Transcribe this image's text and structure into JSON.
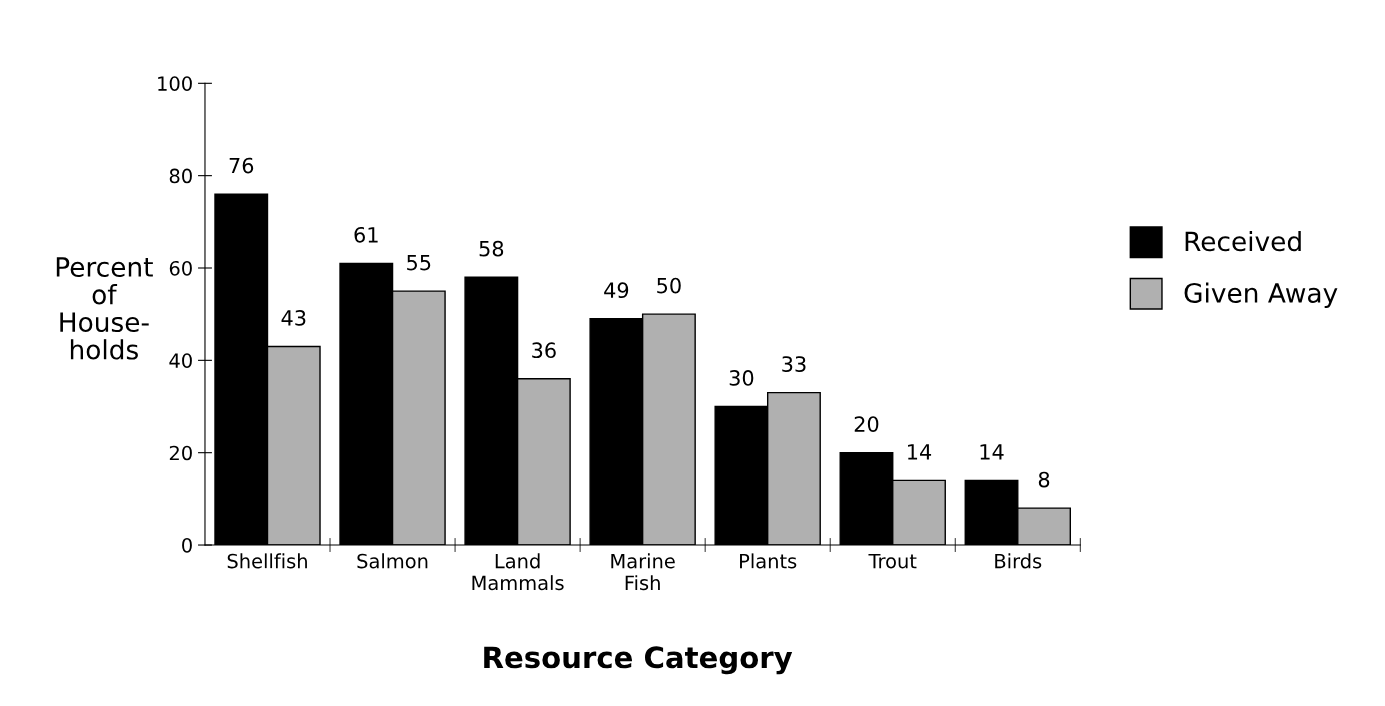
{
  "chart_data": {
    "type": "bar",
    "xlabel": "Resource Category",
    "ylabel": "Percent\nof\nHouse-\nholds",
    "categories": [
      "Shellfish",
      "Salmon",
      "Land\nMammals",
      "Marine\nFish",
      "Plants",
      "Trout",
      "Birds"
    ],
    "series": [
      {
        "name": "Received",
        "color": "#000000",
        "values": [
          76,
          61,
          58,
          49,
          30,
          20,
          14
        ]
      },
      {
        "name": "Given Away",
        "color": "#b0b0b0",
        "values": [
          43,
          55,
          36,
          50,
          33,
          14,
          8
        ]
      }
    ],
    "ylim": [
      0,
      100
    ],
    "yticks": [
      0,
      20,
      40,
      60,
      80,
      100
    ],
    "data_labels": true,
    "grid": false,
    "legend": "right"
  }
}
